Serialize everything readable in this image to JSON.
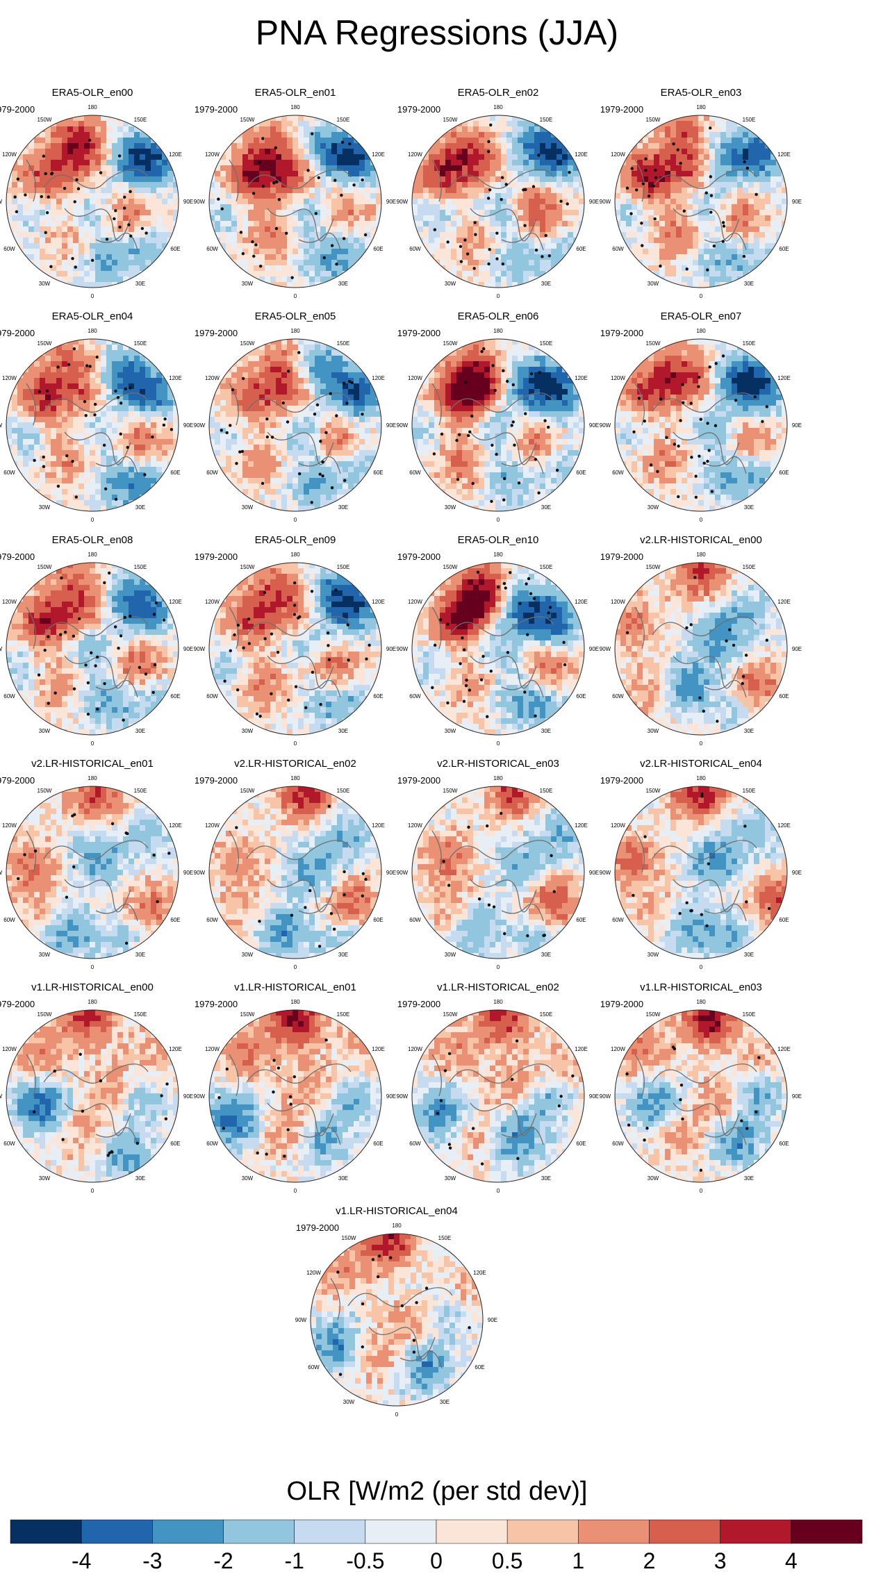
{
  "chart_data": {
    "type": "heatmap",
    "title": "PNA Regressions (JJA)",
    "projection": "north polar stereographic",
    "period_label": "1979-2000",
    "lon_labels": [
      "180",
      "150E",
      "120E",
      "90E",
      "60E",
      "30E",
      "0",
      "30W",
      "60W",
      "90W",
      "120W",
      "150W"
    ],
    "panels": [
      {
        "name": "ERA5-OLR_en00",
        "style": "era5",
        "seed": 1
      },
      {
        "name": "ERA5-OLR_en01",
        "style": "era5",
        "seed": 2
      },
      {
        "name": "ERA5-OLR_en02",
        "style": "era5",
        "seed": 3
      },
      {
        "name": "ERA5-OLR_en03",
        "style": "era5",
        "seed": 4
      },
      {
        "name": "ERA5-OLR_en04",
        "style": "era5",
        "seed": 5
      },
      {
        "name": "ERA5-OLR_en05",
        "style": "era5",
        "seed": 6
      },
      {
        "name": "ERA5-OLR_en06",
        "style": "era5",
        "seed": 7
      },
      {
        "name": "ERA5-OLR_en07",
        "style": "era5",
        "seed": 8
      },
      {
        "name": "ERA5-OLR_en08",
        "style": "era5",
        "seed": 9
      },
      {
        "name": "ERA5-OLR_en09",
        "style": "era5",
        "seed": 10
      },
      {
        "name": "ERA5-OLR_en10",
        "style": "era5",
        "seed": 11
      },
      {
        "name": "v2.LR-HISTORICAL_en00",
        "style": "v2",
        "seed": 12
      },
      {
        "name": "v2.LR-HISTORICAL_en01",
        "style": "v2",
        "seed": 13
      },
      {
        "name": "v2.LR-HISTORICAL_en02",
        "style": "v2",
        "seed": 14
      },
      {
        "name": "v2.LR-HISTORICAL_en03",
        "style": "v2",
        "seed": 15
      },
      {
        "name": "v2.LR-HISTORICAL_en04",
        "style": "v2",
        "seed": 16
      },
      {
        "name": "v1.LR-HISTORICAL_en00",
        "style": "v1",
        "seed": 17
      },
      {
        "name": "v1.LR-HISTORICAL_en01",
        "style": "v1",
        "seed": 18
      },
      {
        "name": "v1.LR-HISTORICAL_en02",
        "style": "v1",
        "seed": 19
      },
      {
        "name": "v1.LR-HISTORICAL_en03",
        "style": "v1",
        "seed": 20
      },
      {
        "name": "v1.LR-HISTORICAL_en04",
        "style": "v1",
        "seed": 21
      }
    ],
    "colorbar": {
      "label": "OLR [W/m2 (per std dev)]",
      "levels": [
        -4,
        -3,
        -2,
        -1,
        -0.5,
        0,
        0.5,
        1,
        2,
        3,
        4
      ],
      "tick_labels": [
        "-4",
        "-3",
        "-2",
        "-1",
        "-0.5",
        "0",
        "0.5",
        "1",
        "2",
        "3",
        "4"
      ],
      "colors": [
        "#053061",
        "#2166ac",
        "#4393c3",
        "#92c5de",
        "#c6dbef",
        "#e8eef6",
        "#fbe4d8",
        "#f7c4a7",
        "#ea9074",
        "#d6604d",
        "#b2182b",
        "#67001f"
      ]
    }
  }
}
